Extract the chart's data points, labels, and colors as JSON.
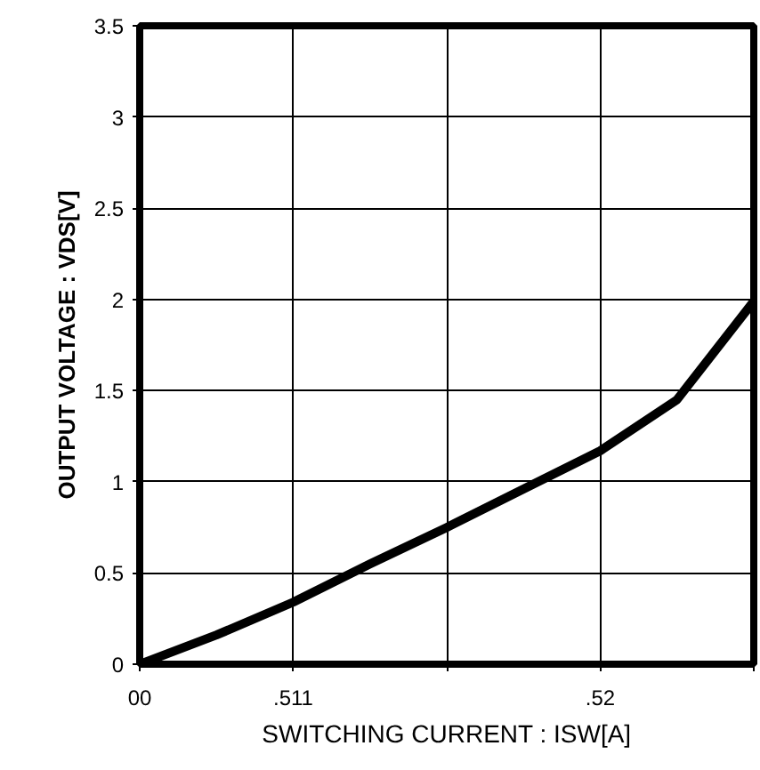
{
  "chart_data": {
    "type": "line",
    "xlabel": "SWITCHING CURRENT : ISW[A]",
    "ylabel": "OUTPUT VOLTAGE : VDS[V]",
    "categories": [
      "00",
      null,
      ".511",
      null,
      null,
      null,
      ".52",
      null,
      null
    ],
    "series": [
      {
        "color": "#000000",
        "values": [
          0,
          0.16,
          0.34,
          0.55,
          0.75,
          0.96,
          1.17,
          1.45,
          1.99
        ]
      }
    ],
    "ylim": [
      0,
      3.5
    ],
    "yticks": [
      0,
      0.5,
      1,
      1.5,
      2,
      2.5,
      3,
      3.5
    ],
    "grid": true,
    "line_style": "solid"
  }
}
